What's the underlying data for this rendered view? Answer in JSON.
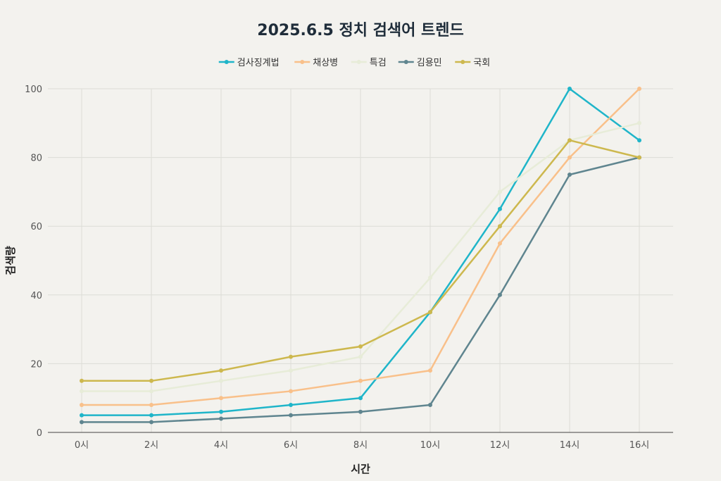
{
  "chart_data": {
    "type": "line",
    "title": "2025.6.5 정치 검색어 트렌드",
    "xlabel": "시간",
    "ylabel": "검색량",
    "categories": [
      "0시",
      "2시",
      "4시",
      "6시",
      "8시",
      "10시",
      "12시",
      "14시",
      "16시"
    ],
    "ylim": [
      0,
      100
    ],
    "yticks": [
      0,
      20,
      40,
      60,
      80,
      100
    ],
    "grid": true,
    "legend_position": "top-center",
    "series": [
      {
        "name": "검사징계법",
        "color": "#1fb5c9",
        "values": [
          5,
          5,
          6,
          8,
          10,
          35,
          65,
          100,
          85
        ]
      },
      {
        "name": "채상병",
        "color": "#f9c08a",
        "values": [
          8,
          8,
          10,
          12,
          15,
          18,
          55,
          80,
          100
        ]
      },
      {
        "name": "특검",
        "color": "#e7ecd8",
        "values": [
          12,
          12,
          15,
          18,
          22,
          45,
          70,
          85,
          90
        ]
      },
      {
        "name": "김용민",
        "color": "#5f858f",
        "values": [
          3,
          3,
          4,
          5,
          6,
          8,
          40,
          75,
          80
        ]
      },
      {
        "name": "국회",
        "color": "#cdb84e",
        "values": [
          15,
          15,
          18,
          22,
          25,
          35,
          60,
          85,
          80
        ]
      }
    ]
  }
}
